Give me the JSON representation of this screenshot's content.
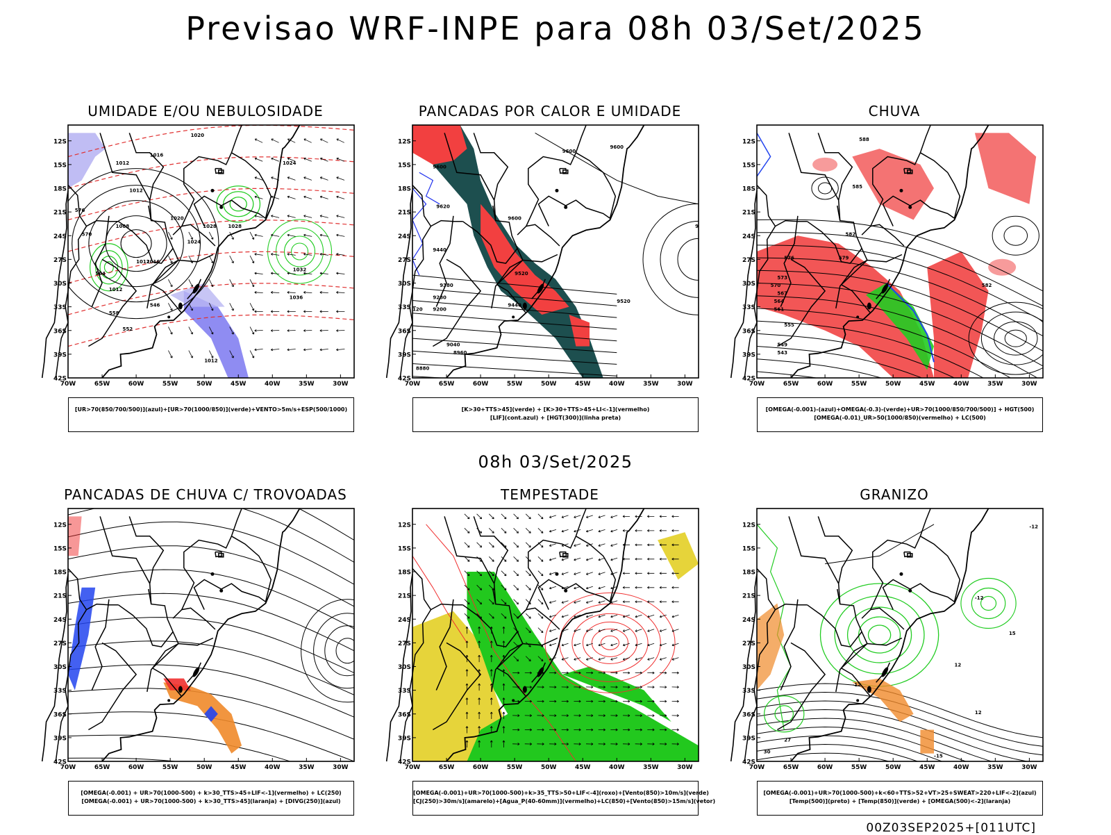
{
  "main_title": "Previsao WRF-INPE  para 08h 03/Set/2025",
  "mid_time": "08h 03/Set/2025",
  "footer": "00Z03SEP2025+[011UTC]",
  "axes": {
    "lat_labels": [
      "12S",
      "15S",
      "18S",
      "21S",
      "24S",
      "27S",
      "30S",
      "33S",
      "36S",
      "39S",
      "42S"
    ],
    "lon_labels": [
      "70W",
      "65W",
      "60W",
      "55W",
      "50W",
      "45W",
      "40W",
      "35W",
      "30W"
    ]
  },
  "panels": [
    {
      "title": "UMIDADE E/OU NEBULOSIDADE",
      "legend": [
        "[UR>70(850/700/500)](azul)+[UR>70(1000/850)](verde)+VENTO>5m/s+ESP(500/1000)"
      ],
      "labels": [
        "1020",
        "1016",
        "1012",
        "1012",
        "1024",
        "1020",
        "1008",
        "1028",
        "1028",
        "1024",
        "1016",
        "1012",
        "1012",
        "1032",
        "1036",
        "1012",
        "576",
        "570",
        "564",
        "558",
        "552",
        "546"
      ],
      "colors": {
        "fill": "#7b78f0",
        "light": "#b9b6f3",
        "contour": "#22cc22",
        "dashed": "#e03030"
      }
    },
    {
      "title": "PANCADAS POR CALOR E UMIDADE",
      "legend": [
        "[K>30+TTS>45](verde) + [K>30+TTS>45+LI<-1](vermelho)",
        "[LIF](cont.azul) + [HGT(300)](linha preta)"
      ],
      "labels": [
        "9600",
        "9600",
        "9600",
        "9620",
        "9600",
        "9440",
        "9520",
        "9380",
        "9280",
        "9440",
        "9520",
        "9200",
        "9040",
        "8960",
        "8880",
        "120",
        "94"
      ],
      "colors": {
        "green": "#1d4f4f",
        "red": "#f24040",
        "contour": "#2233ee"
      }
    },
    {
      "title": "CHUVA",
      "legend": [
        "[OMEGA(-0.001)-(azul)+OMEGA(-0.3)-(verde)+UR>70(1000/850/700/500)] + HGT(500)",
        "[OMEGA(-0.01)_UR>50(1000/850)(vermelho) + LC(500)"
      ],
      "labels": [
        "588",
        "585",
        "582",
        "579",
        "576",
        "573",
        "570",
        "567",
        "564",
        "561",
        "555",
        "549",
        "543",
        "582"
      ],
      "colors": {
        "red": "#f03838",
        "blue": "#2244ee",
        "green": "#22cc22"
      }
    },
    {
      "title": "PANCADAS DE CHUVA C/ TROVOADAS",
      "legend": [
        "[OMEGA(-0.001) + UR>70(1000-500) + k>30_TTS>45+LIF<-1](vermelho) + LC(250)",
        "[OMEGA(-0.001) + UR>70(1000-500) + k>30_TTS>45](laranja) + [DIVG(250)](azul)"
      ],
      "labels": [],
      "colors": {
        "red": "#f03030",
        "orange": "#f08a2a",
        "blue": "#2244ee"
      }
    },
    {
      "title": "TEMPESTADE",
      "legend": [
        "[OMEGA(-0.001)+UR>70(1000-500)+k>35_TTS>50+LIF<-4](roxo)+[Vento(850)>10m/s](verde)",
        "[CJ(250)>30m/s](amarelo)+[Agua_P(40-60mm)](vermelho)+LC(850)+[Vento(850)>15m/s](vetor)"
      ],
      "labels": [],
      "colors": {
        "green": "#22c81e",
        "yellow": "#e6d43a",
        "red": "#f03030"
      }
    },
    {
      "title": "GRANIZO",
      "legend": [
        "[OMEGA(-0.001)+UR>70(1000-500)+k<60+TTS>52+VT>25+SWEAT>220+LIF<-2](azul)",
        "[Temp(500)](preto) + [Temp(850)](verde) + [OMEGA(500)<-2](laranja)"
      ],
      "labels": [
        "-12",
        "-12",
        "-15",
        "-12",
        "12",
        "30",
        "27",
        "15",
        "12"
      ],
      "colors": {
        "green": "#22cc22",
        "orange": "#f08a2a",
        "black": "#000000"
      }
    }
  ]
}
